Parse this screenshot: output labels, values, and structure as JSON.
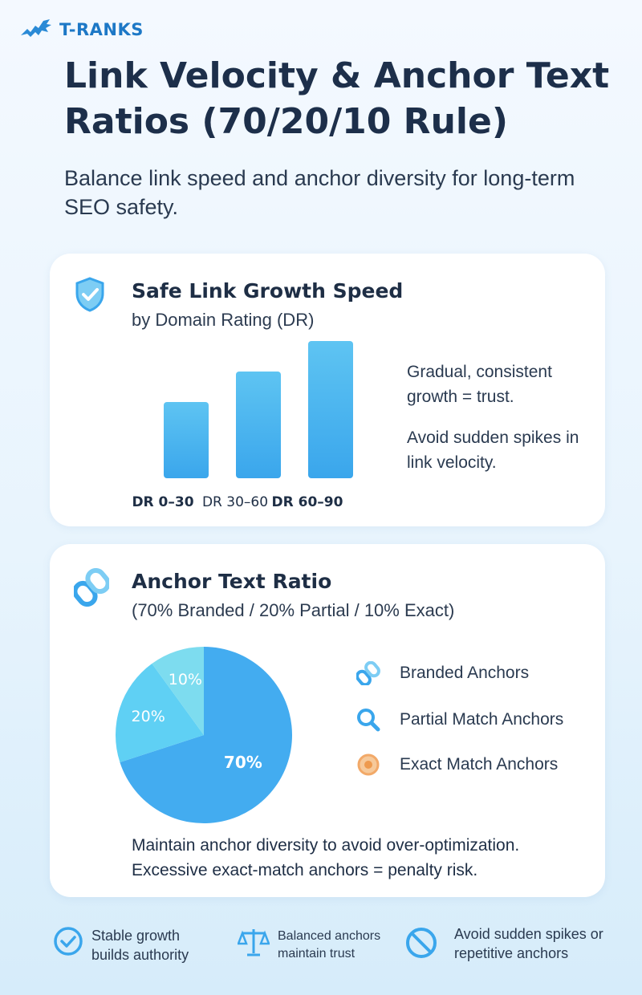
{
  "brand": {
    "name": "T-RANKS"
  },
  "header": {
    "title": "Link Velocity & Anchor Text Ratios (70/20/10 Rule)",
    "subtitle": "Balance link speed and anchor diversity for long-term SEO safety."
  },
  "velocity_card": {
    "title": "Safe Link Growth Speed",
    "subtitle": "by Domain Rating (DR)",
    "notes": [
      "Gradual, consistent growth = trust.",
      "Avoid sudden spikes in link velocity."
    ]
  },
  "anchor_card": {
    "title": "Anchor Text Ratio",
    "subtitle": "(70% Branded / 20% Partial / 10% Exact)",
    "legend": [
      "Branded Anchors",
      "Partial Match Anchors",
      "Exact Match Anchors"
    ],
    "footer_lines": [
      "Maintain anchor diversity to avoid over-optimization.",
      "Excessive exact-match anchors = penalty risk."
    ]
  },
  "chart_data": [
    {
      "type": "bar",
      "categories": [
        "DR 0–30",
        "DR 30–60",
        "DR 60–90"
      ],
      "values": [
        1,
        1.4,
        1.8
      ],
      "ylim": [
        0,
        2
      ],
      "grid": false
    },
    {
      "type": "pie",
      "categories": [
        "70%",
        "20%",
        "10%"
      ],
      "values": [
        70,
        20,
        10
      ],
      "colors": [
        "#43acf0",
        "#5fd0f4",
        "#7ddcef"
      ]
    }
  ],
  "footer": [
    {
      "text": "Stable growth builds authority",
      "icon": "check-circle-icon"
    },
    {
      "text": "Balanced anchors maintain trust",
      "icon": "scale-icon"
    },
    {
      "text": "Avoid sudden spikes or repetitive anchors",
      "icon": "prohibited-icon"
    }
  ]
}
